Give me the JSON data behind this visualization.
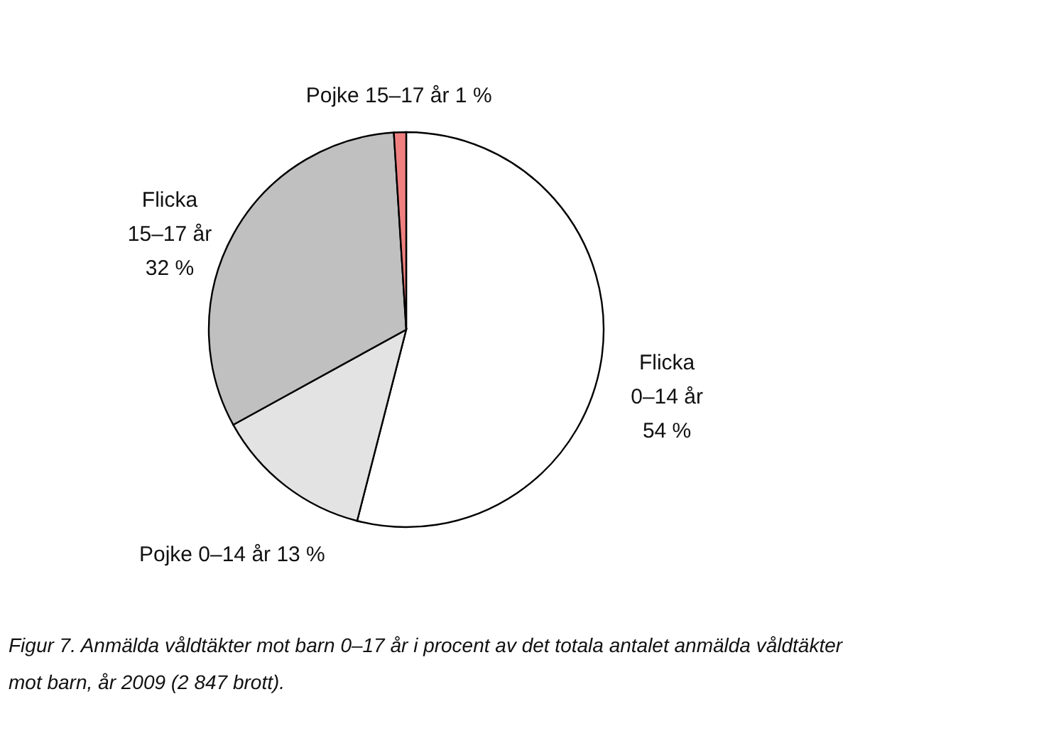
{
  "chart_data": {
    "type": "pie",
    "categories": [
      "Flicka 0–14 år",
      "Pojke 0–14 år",
      "Flicka 15–17 år",
      "Pojke 15–17 år"
    ],
    "values": [
      54,
      13,
      32,
      1
    ],
    "colors": [
      "#ffffff",
      "#e3e3e3",
      "#c0c0c0",
      "#f08080"
    ],
    "value_labels": [
      "54 %",
      "13 %",
      "32 %",
      "1 %"
    ],
    "annotations": [
      "Figur 7. Anmälda våldtäkter mot barn 0–17 år i procent av det totala antalet anmälda våldtäkter mot barn, år 2009 (2 847 brott)."
    ],
    "legend": false
  }
}
